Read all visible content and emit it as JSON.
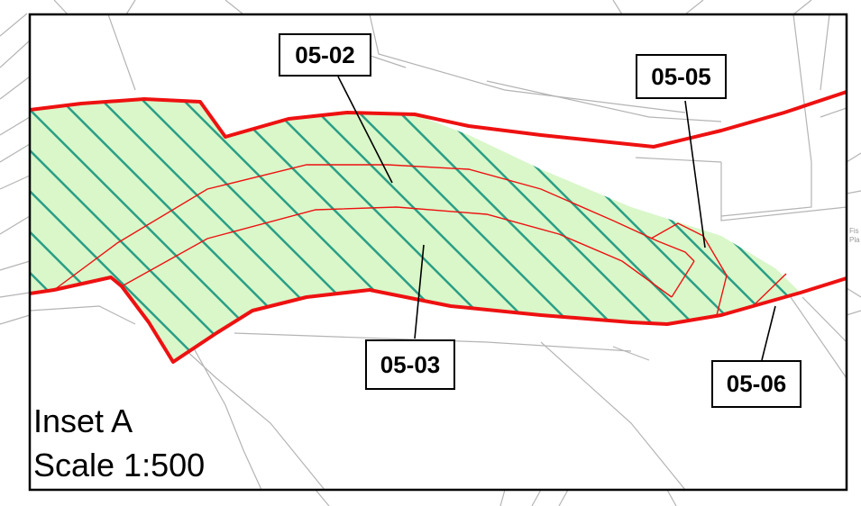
{
  "inset": {
    "title": "Inset A",
    "scale": "Scale 1:500"
  },
  "parcels": [
    {
      "id": "05-02",
      "label": "05-02"
    },
    {
      "id": "05-03",
      "label": "05-03"
    },
    {
      "id": "05-05",
      "label": "05-05"
    },
    {
      "id": "05-06",
      "label": "05-06"
    }
  ],
  "edge_text": {
    "line1": "Fis",
    "line2": "Pla"
  },
  "colors": {
    "boundary": "#ee1111",
    "fill": "#d9f7c9",
    "hatch": "#2a9e86",
    "basemap_lines": "#b4b4b4",
    "frame": "#000000"
  }
}
